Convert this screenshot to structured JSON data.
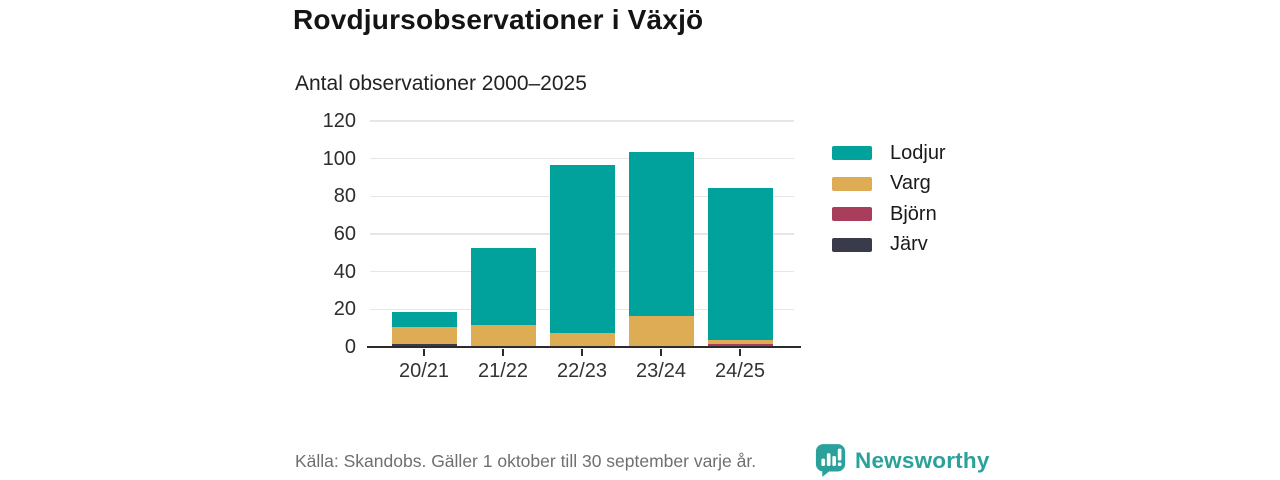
{
  "header": {
    "title": "Rovdjursobservationer i Växjö",
    "subtitle": "Antal observationer 2000–2025"
  },
  "footer": {
    "source": "Källa: Skandobs. Gäller 1 oktober till 30 september varje år.",
    "brand": "Newsworthy"
  },
  "colors": {
    "lodjur": "#00a29b",
    "varg": "#deac55",
    "bjorn": "#a93e5c",
    "jarv": "#3a3b4a",
    "axis": "#2b2b2b",
    "grid": "#e6e6e6",
    "footer_text": "#6f6f6f",
    "brand_teal": "#2aa19a"
  },
  "chart_data": {
    "type": "bar",
    "stacked": true,
    "title": "Rovdjursobservationer i Växjö",
    "subtitle": "Antal observationer 2000–2025",
    "categories": [
      "20/21",
      "21/22",
      "22/23",
      "23/24",
      "24/25"
    ],
    "series": [
      {
        "name": "Lodjur",
        "color": "#00a29b",
        "values": [
          8,
          41,
          89,
          87,
          81
        ]
      },
      {
        "name": "Varg",
        "color": "#deac55",
        "values": [
          9,
          11,
          7,
          16,
          2
        ]
      },
      {
        "name": "Björn",
        "color": "#a93e5c",
        "values": [
          0,
          0,
          0,
          0,
          1
        ]
      },
      {
        "name": "Järv",
        "color": "#3a3b4a",
        "values": [
          1,
          0,
          0,
          0,
          0
        ]
      }
    ],
    "totals": [
      18,
      52,
      96,
      103,
      84
    ],
    "stack_order_bottom_to_top": [
      "Järv",
      "Björn",
      "Varg",
      "Lodjur"
    ],
    "ylim": [
      0,
      120
    ],
    "yticks": [
      0,
      20,
      40,
      60,
      80,
      100,
      120
    ],
    "grid": true,
    "legend_position": "right",
    "xlabel": "",
    "ylabel": ""
  }
}
